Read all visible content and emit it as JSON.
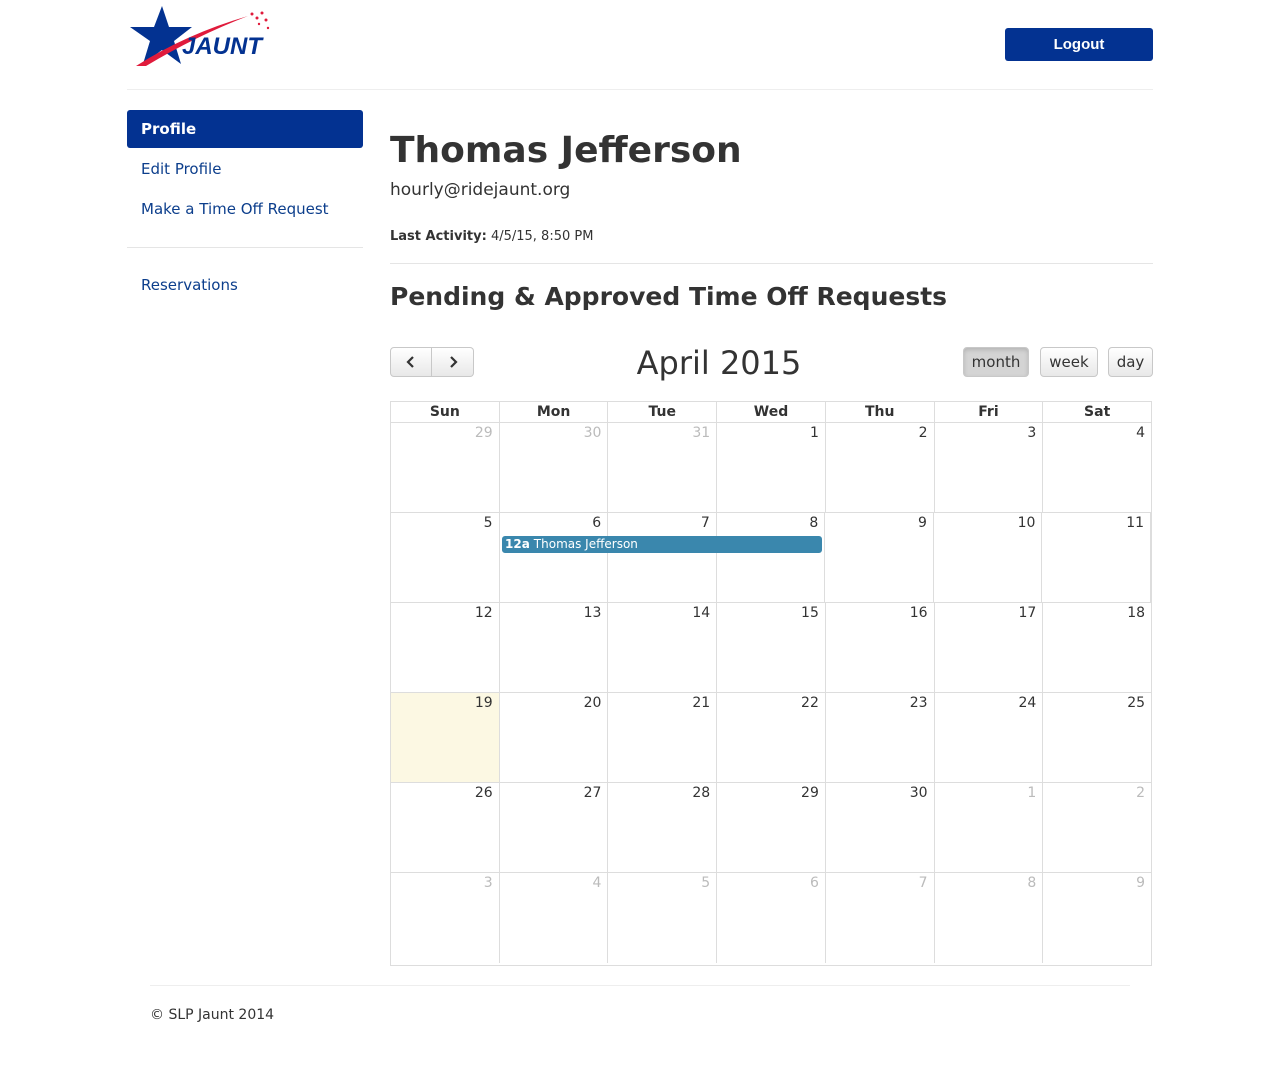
{
  "header": {
    "logo_text": "JAUNT",
    "logout_label": "Logout",
    "colors": {
      "brand_blue": "#033291",
      "brand_red": "#e01b3c"
    }
  },
  "sidebar": {
    "items": [
      {
        "label": "Profile",
        "active": true
      },
      {
        "label": "Edit Profile",
        "active": false
      },
      {
        "label": "Make a Time Off Request",
        "active": false
      }
    ],
    "secondary": [
      {
        "label": "Reservations"
      }
    ]
  },
  "profile": {
    "name": "Thomas Jefferson",
    "email": "hourly@ridejaunt.org",
    "last_activity_label": "Last Activity:",
    "last_activity_value": "4/5/15, 8:50 PM"
  },
  "section": {
    "title": "Pending & Approved Time Off Requests"
  },
  "calendar": {
    "title": "April 2015",
    "prev_icon": "chevron-left-icon",
    "next_icon": "chevron-right-icon",
    "views": [
      {
        "label": "month",
        "active": true
      },
      {
        "label": "week",
        "active": false
      },
      {
        "label": "day",
        "active": false
      }
    ],
    "day_headers": [
      "Sun",
      "Mon",
      "Tue",
      "Wed",
      "Thu",
      "Fri",
      "Sat"
    ],
    "weeks": [
      [
        {
          "d": "29",
          "o": true
        },
        {
          "d": "30",
          "o": true
        },
        {
          "d": "31",
          "o": true
        },
        {
          "d": "1"
        },
        {
          "d": "2"
        },
        {
          "d": "3"
        },
        {
          "d": "4"
        }
      ],
      [
        {
          "d": "5"
        },
        {
          "d": "6"
        },
        {
          "d": "7"
        },
        {
          "d": "8"
        },
        {
          "d": "9"
        },
        {
          "d": "10"
        },
        {
          "d": "11"
        }
      ],
      [
        {
          "d": "12"
        },
        {
          "d": "13"
        },
        {
          "d": "14"
        },
        {
          "d": "15"
        },
        {
          "d": "16"
        },
        {
          "d": "17"
        },
        {
          "d": "18"
        }
      ],
      [
        {
          "d": "19",
          "today": true
        },
        {
          "d": "20"
        },
        {
          "d": "21"
        },
        {
          "d": "22"
        },
        {
          "d": "23"
        },
        {
          "d": "24"
        },
        {
          "d": "25"
        }
      ],
      [
        {
          "d": "26"
        },
        {
          "d": "27"
        },
        {
          "d": "28"
        },
        {
          "d": "29"
        },
        {
          "d": "30"
        },
        {
          "d": "1",
          "o": true
        },
        {
          "d": "2",
          "o": true
        }
      ],
      [
        {
          "d": "3",
          "o": true
        },
        {
          "d": "4",
          "o": true
        },
        {
          "d": "5",
          "o": true
        },
        {
          "d": "6",
          "o": true
        },
        {
          "d": "7",
          "o": true
        },
        {
          "d": "8",
          "o": true
        },
        {
          "d": "9",
          "o": true
        }
      ]
    ],
    "events": [
      {
        "time": "12a",
        "title": "Thomas Jefferson",
        "start": "6",
        "end": "8",
        "color": "#3a87ad"
      }
    ]
  },
  "footer": {
    "text": "© SLP Jaunt 2014"
  }
}
